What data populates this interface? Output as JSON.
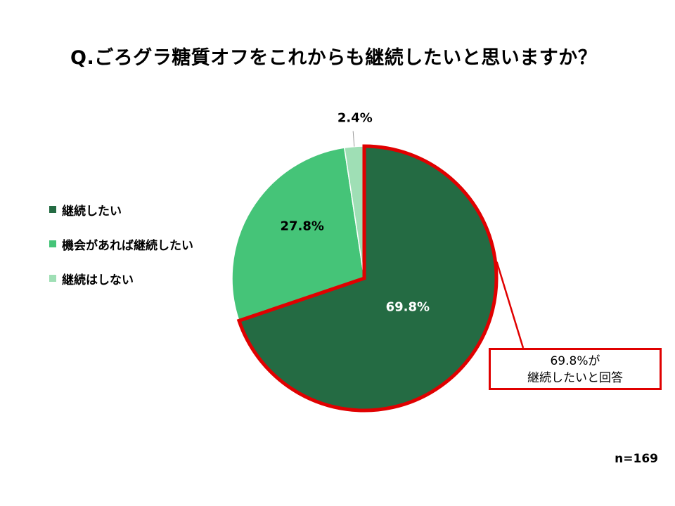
{
  "chart_data": {
    "type": "pie",
    "title": "Q.ごろグラ糖質オフをこれからも継続したいと思いますか？",
    "categories": [
      "継続したい",
      "機会があれば継続したい",
      "継続はしない"
    ],
    "values": [
      69.8,
      27.8,
      2.4
    ],
    "data_labels": [
      "69.8%",
      "27.8%",
      "2.4%"
    ],
    "colors": [
      "#246B43",
      "#45C478",
      "#9FDFB5"
    ],
    "legend_position": "left",
    "highlight_color": "#E00000"
  },
  "callout": {
    "line1": "69.8%が",
    "line2": "継続したいと回答"
  },
  "sample_size": "n=169"
}
